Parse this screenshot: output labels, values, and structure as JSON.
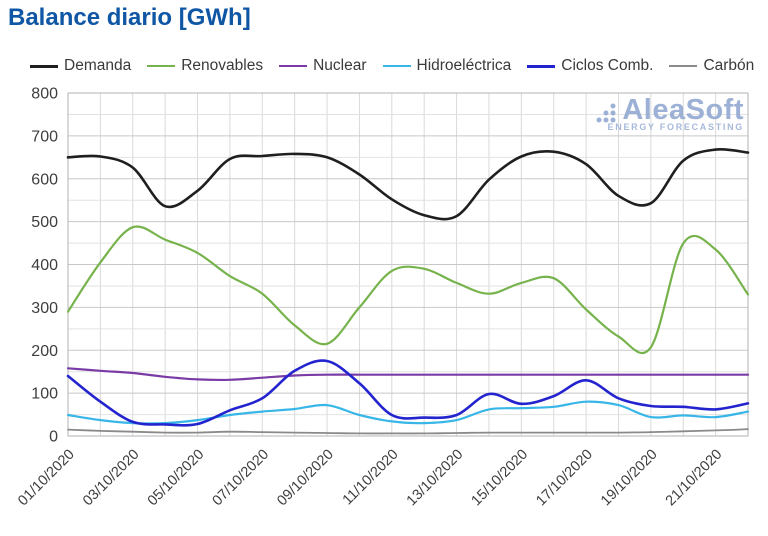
{
  "page": {
    "title": "Balance diario [GWh]",
    "title_color": "#0f56a4"
  },
  "legend": {
    "items": [
      {
        "label": "Demanda",
        "color": "#1f1f1f"
      },
      {
        "label": "Renovables",
        "color": "#77b34c"
      },
      {
        "label": "Nuclear",
        "color": "#7a3ba6"
      },
      {
        "label": "Hidroeléctrica",
        "color": "#38b6e8"
      },
      {
        "label": "Ciclos Comb.",
        "color": "#2424cf"
      },
      {
        "label": "Carbón",
        "color": "#8a8a8a"
      }
    ]
  },
  "watermark": {
    "name": "AleaSoft",
    "tagline": "ENERGY FORECASTING",
    "color": "#93a9d2"
  },
  "chart_data": {
    "type": "line",
    "title": "Balance diario [GWh]",
    "xlabel": "",
    "ylabel": "GWh",
    "ylim": [
      0,
      800
    ],
    "y_major_step": 100,
    "y_minor_step": 50,
    "grid": true,
    "legend_position": "top",
    "categories": [
      "01/10/2020",
      "02/10/2020",
      "03/10/2020",
      "04/10/2020",
      "05/10/2020",
      "06/10/2020",
      "07/10/2020",
      "08/10/2020",
      "09/10/2020",
      "10/10/2020",
      "11/10/2020",
      "12/10/2020",
      "13/10/2020",
      "14/10/2020",
      "15/10/2020",
      "16/10/2020",
      "17/10/2020",
      "18/10/2020",
      "19/10/2020",
      "20/10/2020",
      "21/10/2020",
      "22/10/2020"
    ],
    "x_tick_indices": [
      0,
      2,
      4,
      6,
      8,
      10,
      12,
      14,
      16,
      18,
      20
    ],
    "x_tick_labels": [
      "01/10/2020",
      "03/10/2020",
      "05/10/2020",
      "07/10/2020",
      "09/10/2020",
      "11/10/2020",
      "13/10/2020",
      "15/10/2020",
      "17/10/2020",
      "19/10/2020",
      "21/10/2020"
    ],
    "series": [
      {
        "name": "Demanda",
        "color": "#1f1f1f",
        "width": 2.6,
        "values": [
          650,
          652,
          626,
          536,
          572,
          646,
          653,
          658,
          650,
          610,
          552,
          515,
          513,
          598,
          652,
          663,
          634,
          560,
          543,
          642,
          668,
          661
        ]
      },
      {
        "name": "Renovables",
        "color": "#77b34c",
        "width": 2.2,
        "values": [
          290,
          405,
          487,
          458,
          427,
          373,
          332,
          258,
          215,
          300,
          385,
          390,
          357,
          332,
          357,
          368,
          295,
          232,
          207,
          449,
          435,
          330
        ]
      },
      {
        "name": "Nuclear",
        "color": "#7a3ba6",
        "width": 2.2,
        "values": [
          158,
          152,
          147,
          138,
          132,
          131,
          136,
          141,
          143,
          143,
          143,
          143,
          143,
          143,
          143,
          143,
          143,
          143,
          143,
          143,
          143,
          143
        ]
      },
      {
        "name": "Hidroeléctrica",
        "color": "#38b6e8",
        "width": 2.2,
        "values": [
          49,
          37,
          30,
          30,
          37,
          49,
          57,
          63,
          72,
          49,
          34,
          30,
          37,
          62,
          65,
          68,
          80,
          72,
          44,
          48,
          44,
          57
        ]
      },
      {
        "name": "Ciclos Comb.",
        "color": "#2424cf",
        "width": 2.6,
        "values": [
          140,
          80,
          33,
          27,
          28,
          60,
          88,
          152,
          175,
          123,
          49,
          43,
          49,
          98,
          75,
          93,
          130,
          88,
          70,
          68,
          62,
          76
        ]
      },
      {
        "name": "Carbón",
        "color": "#8a8a8a",
        "width": 1.8,
        "values": [
          15,
          12,
          10,
          8,
          8,
          10,
          9,
          8,
          7,
          6,
          6,
          6,
          7,
          8,
          8,
          8,
          8,
          8,
          9,
          11,
          13,
          16
        ]
      }
    ]
  }
}
